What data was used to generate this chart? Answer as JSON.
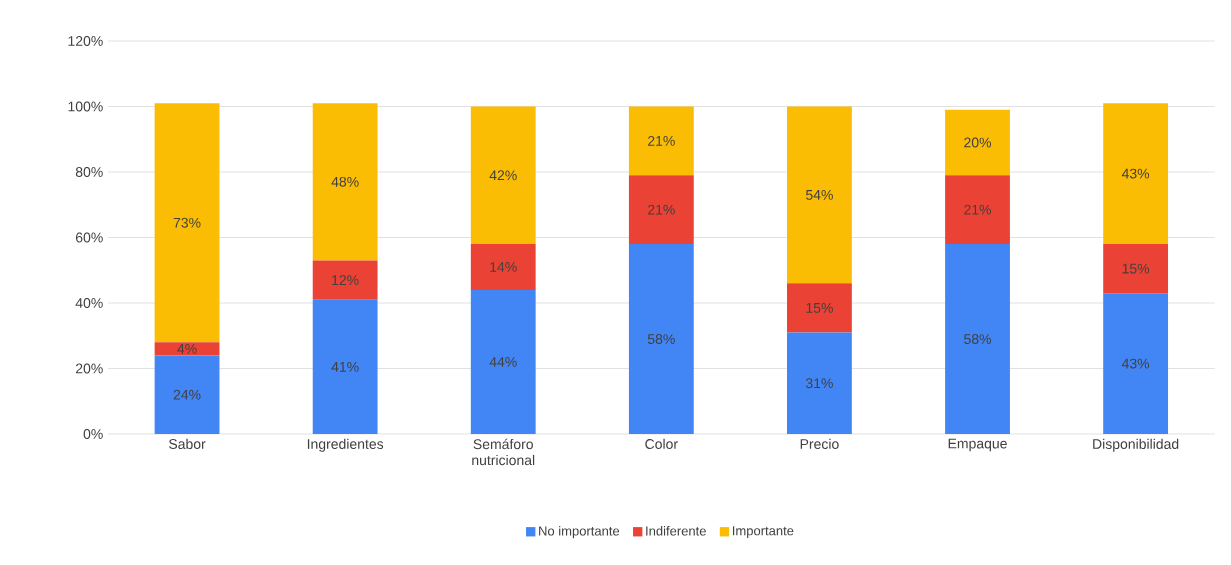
{
  "chart_data": {
    "type": "bar",
    "stacked": true,
    "categories": [
      "Sabor",
      "Ingredientes",
      "Semáforo nutricional",
      "Color",
      "Precio",
      "Empaque",
      "Disponibilidad"
    ],
    "series": [
      {
        "name": "No importante",
        "color": "#4285f4",
        "values": [
          24,
          41,
          44,
          58,
          31,
          58,
          43
        ],
        "value_labels": [
          "24%",
          "41%",
          "44%",
          "58%",
          "31%",
          "58%",
          "43%"
        ]
      },
      {
        "name": "Indiferente",
        "color": "#ea4335",
        "values": [
          4,
          12,
          14,
          21,
          15,
          21,
          15
        ],
        "value_labels": [
          "4%",
          "12%",
          "14%",
          "21%",
          "15%",
          "21%",
          "15%"
        ]
      },
      {
        "name": "Importante",
        "color": "#fbbc04",
        "values": [
          73,
          48,
          42,
          21,
          54,
          20,
          43
        ],
        "value_labels": [
          "73%",
          "48%",
          "42%",
          "21%",
          "54%",
          "20%",
          "43%"
        ]
      }
    ],
    "ylim": [
      0,
      120
    ],
    "yticks": [
      {
        "value": 0,
        "label": "0%"
      },
      {
        "value": 20,
        "label": "20%"
      },
      {
        "value": 40,
        "label": "40%"
      },
      {
        "value": 60,
        "label": "60%"
      },
      {
        "value": 80,
        "label": "80%"
      },
      {
        "value": 100,
        "label": "100%"
      },
      {
        "value": 120,
        "label": "120%"
      }
    ],
    "grid": "y",
    "legend": "bottom"
  }
}
